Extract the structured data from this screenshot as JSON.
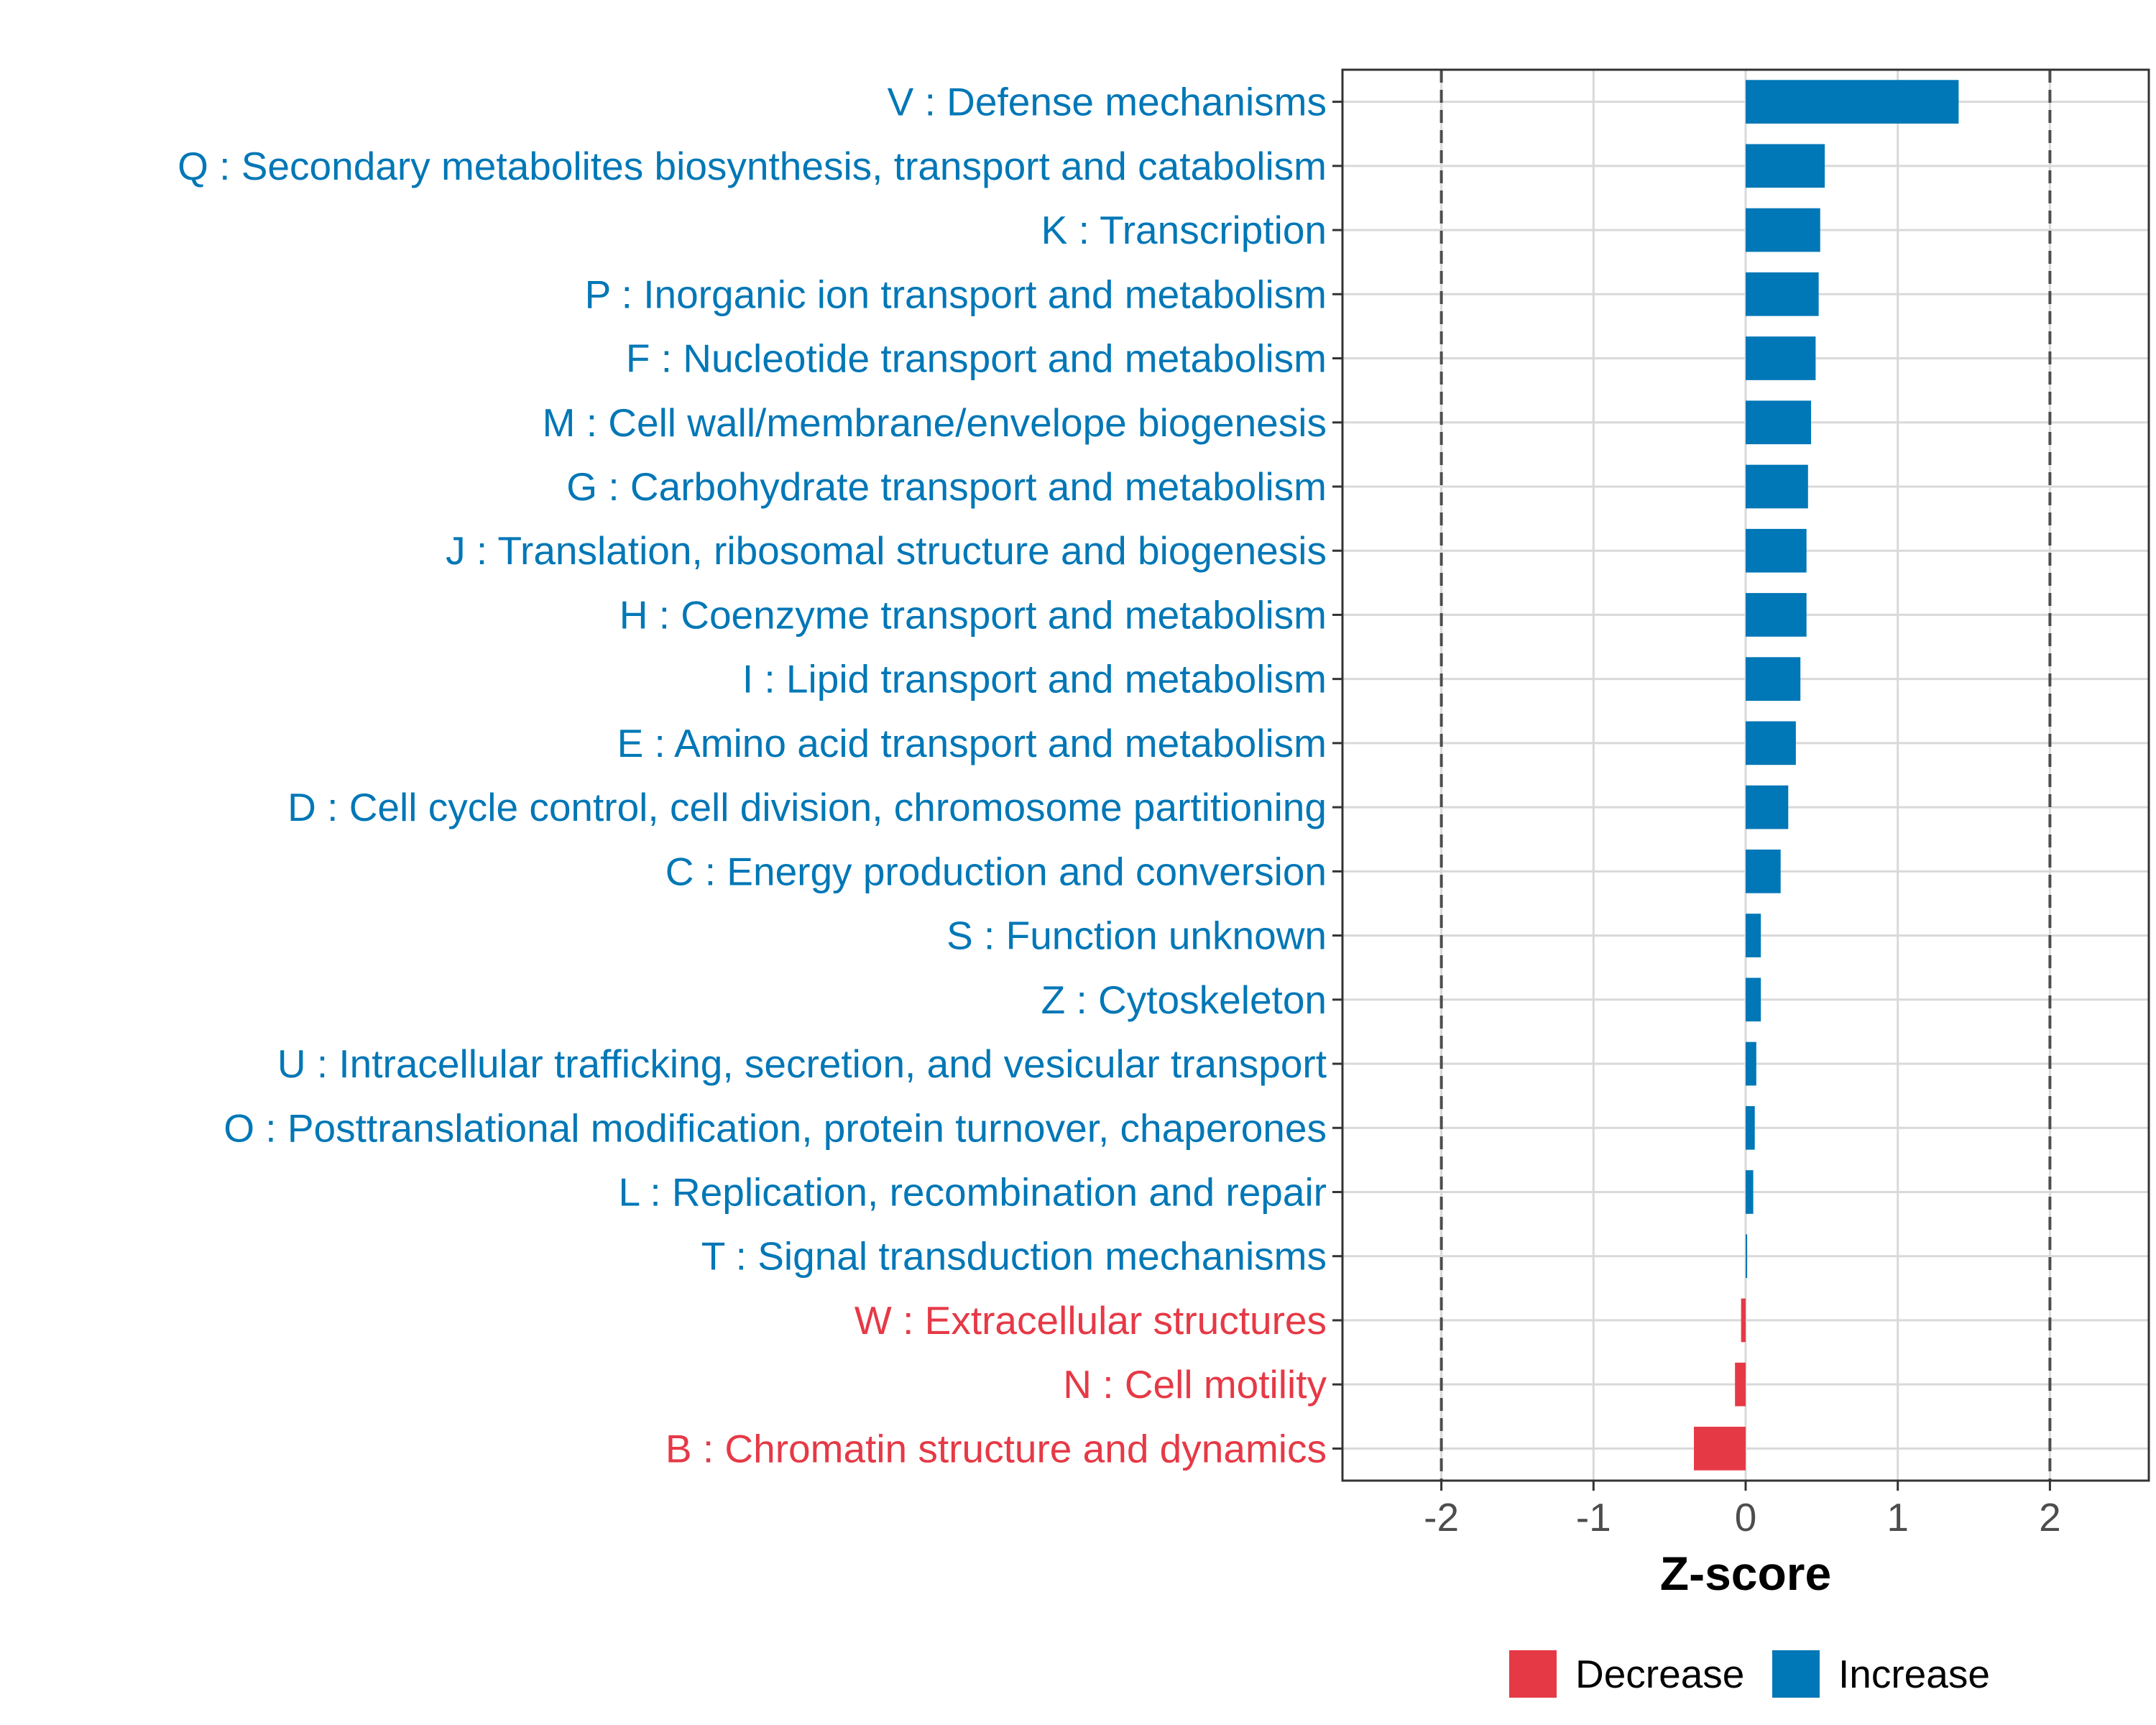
{
  "chart_data": {
    "type": "bar",
    "orientation": "horizontal",
    "xlabel": "Z-score",
    "ylabel": "",
    "xlim": [
      -2.65,
      2.65
    ],
    "xticks": [
      -2,
      -1,
      0,
      1,
      2
    ],
    "xtick_labels": [
      "-2",
      "-1",
      "0",
      "1",
      "2"
    ],
    "reference_lines": [
      -2,
      2
    ],
    "grid": true,
    "legend_position": "bottom",
    "categories": [
      "V : Defense mechanisms",
      "Q : Secondary metabolites biosynthesis, transport and catabolism",
      "K : Transcription",
      "P : Inorganic ion transport and metabolism",
      "F : Nucleotide transport and metabolism",
      "M : Cell wall/membrane/envelope biogenesis",
      "G : Carbohydrate transport and metabolism",
      "J : Translation, ribosomal structure and biogenesis",
      "H : Coenzyme transport and metabolism",
      "I : Lipid transport and metabolism",
      "E : Amino acid transport and metabolism",
      "D : Cell cycle control, cell division, chromosome partitioning",
      "C : Energy production and conversion",
      "S : Function unknown",
      "Z : Cytoskeleton",
      "U : Intracellular trafficking, secretion, and vesicular transport",
      "O : Posttranslational modification, protein turnover, chaperones",
      "L : Replication, recombination and repair",
      "T : Signal transduction mechanisms",
      "W : Extracellular structures",
      "N : Cell motility",
      "B : Chromatin structure and dynamics"
    ],
    "values": [
      1.4,
      0.52,
      0.49,
      0.48,
      0.46,
      0.43,
      0.41,
      0.4,
      0.4,
      0.36,
      0.33,
      0.28,
      0.23,
      0.1,
      0.1,
      0.07,
      0.06,
      0.05,
      0.01,
      -0.03,
      -0.07,
      -0.34
    ],
    "groups": [
      "Increase",
      "Increase",
      "Increase",
      "Increase",
      "Increase",
      "Increase",
      "Increase",
      "Increase",
      "Increase",
      "Increase",
      "Increase",
      "Increase",
      "Increase",
      "Increase",
      "Increase",
      "Increase",
      "Increase",
      "Increase",
      "Increase",
      "Decrease",
      "Decrease",
      "Decrease"
    ],
    "legend": [
      {
        "label": "Decrease",
        "color": "#e63946"
      },
      {
        "label": "Increase",
        "color": "#0077b6"
      }
    ],
    "colors": {
      "Decrease": "#e63946",
      "Increase": "#0077b6"
    }
  }
}
